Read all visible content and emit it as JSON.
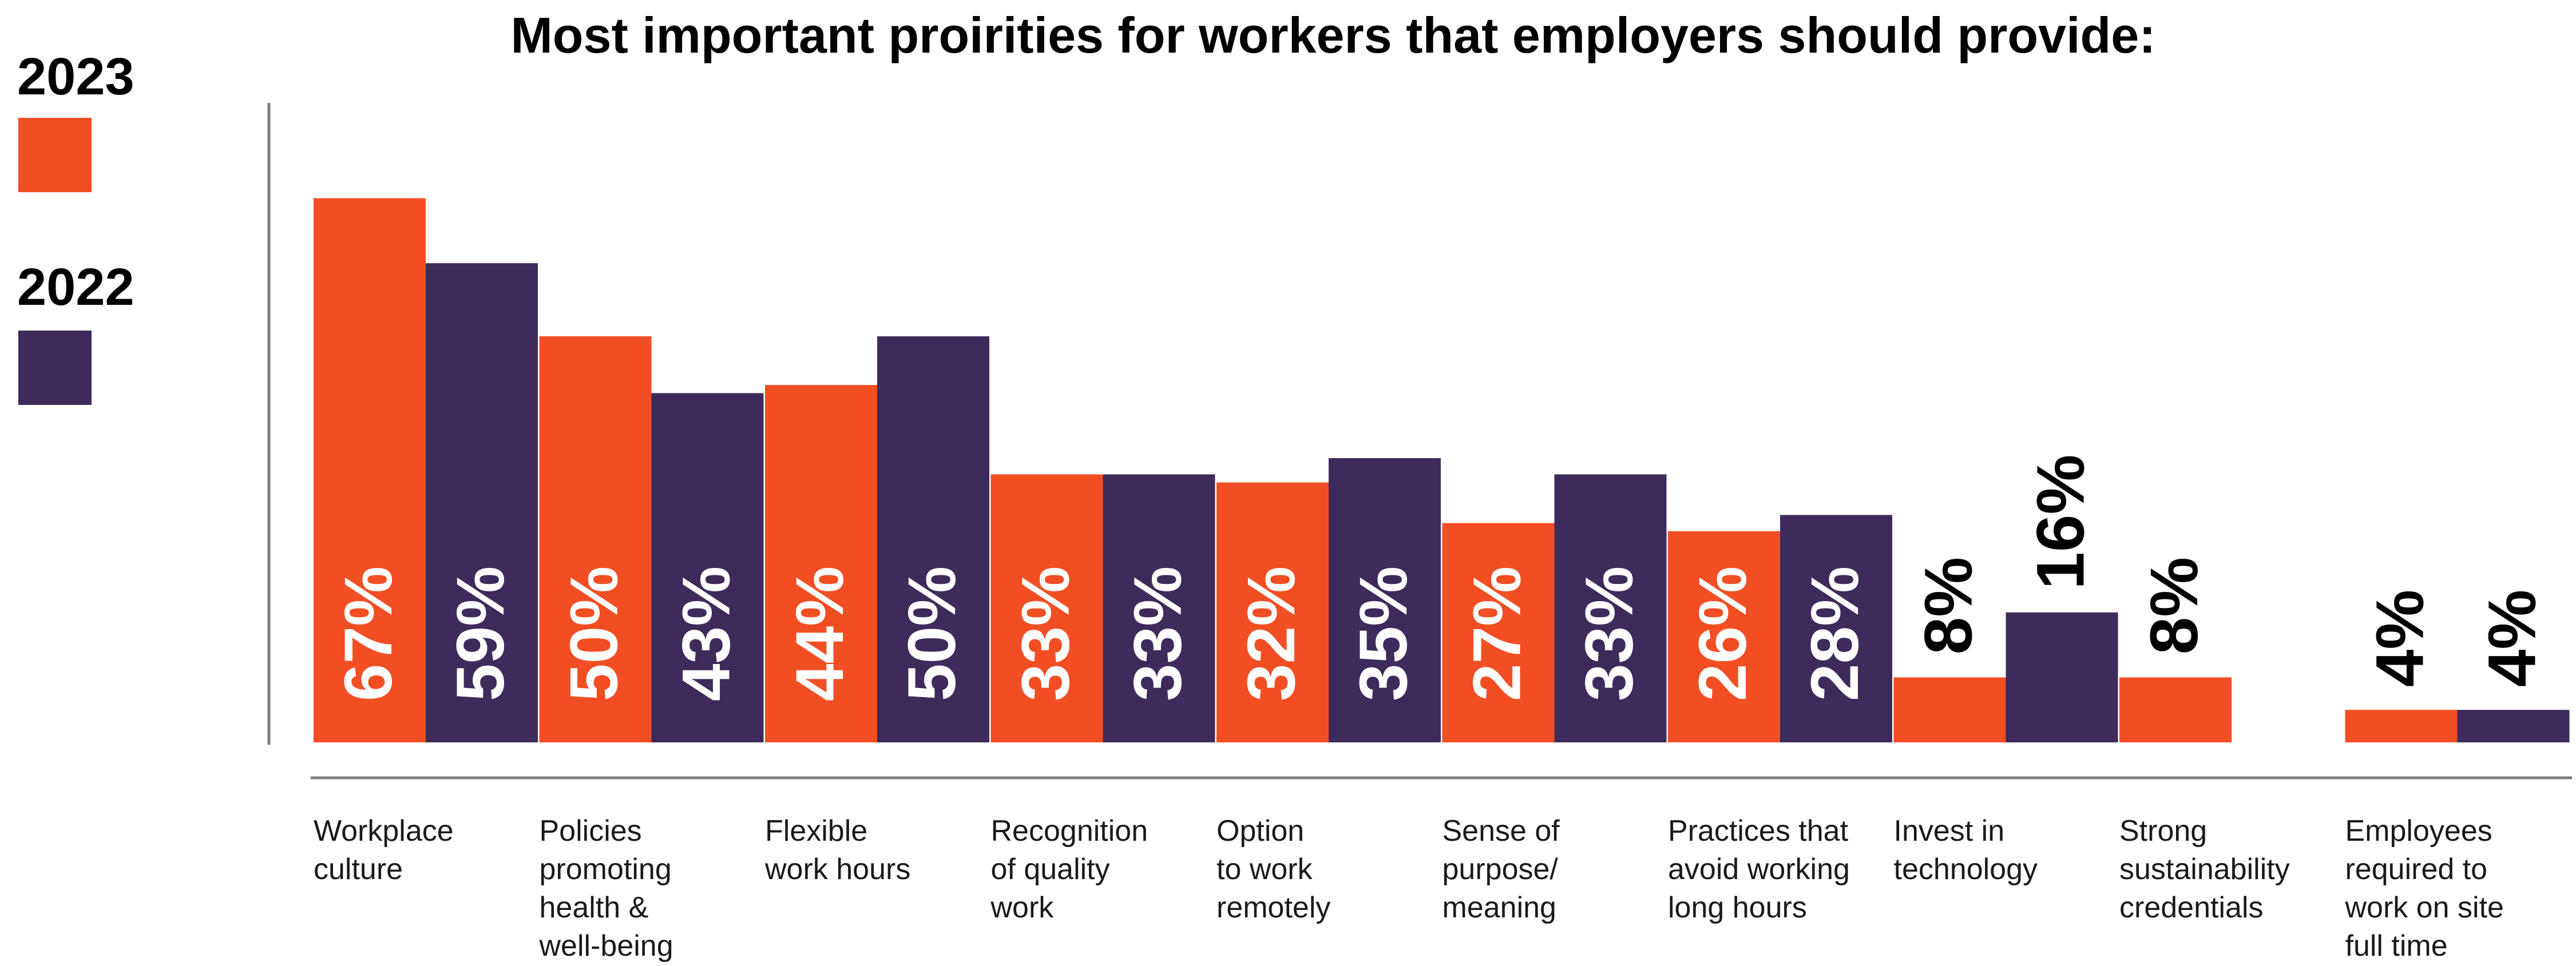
{
  "chart_data": {
    "type": "bar",
    "title": "Most important proirities for workers that employers should provide:",
    "xlabel": "",
    "ylabel": "",
    "ylim": [
      0,
      100
    ],
    "grid": false,
    "legend_position": "top-left",
    "categories": [
      [
        "Workplace",
        "culture"
      ],
      [
        "Policies",
        "promoting",
        "health &",
        "well-being"
      ],
      [
        "Flexible",
        "work hours"
      ],
      [
        "Recognition",
        "of quality",
        "work"
      ],
      [
        "Option",
        "to work",
        "remotely"
      ],
      [
        "Sense of",
        "purpose/",
        "meaning"
      ],
      [
        "Practices that",
        "avoid working",
        "long hours"
      ],
      [
        "Invest in",
        "technology"
      ],
      [
        "Strong",
        "sustainability",
        "credentials"
      ],
      [
        "Employees",
        "required to",
        "work on site",
        "full time"
      ]
    ],
    "series": [
      {
        "name": "2023",
        "color": "#F24E23",
        "values": [
          67,
          50,
          44,
          33,
          32,
          27,
          26,
          8,
          8,
          4
        ],
        "labels": [
          "67%",
          "50%",
          "44%",
          "33%",
          "32%",
          "27%",
          "26%",
          "8%",
          "8%",
          "4%"
        ]
      },
      {
        "name": "2022",
        "color": "#3D2B5B",
        "values": [
          59,
          43,
          50,
          33,
          35,
          33,
          28,
          16,
          null,
          4
        ],
        "labels": [
          "59%",
          "43%",
          "50%",
          "33%",
          "35%",
          "33%",
          "28%",
          "16%",
          "",
          "4%"
        ]
      }
    ]
  }
}
